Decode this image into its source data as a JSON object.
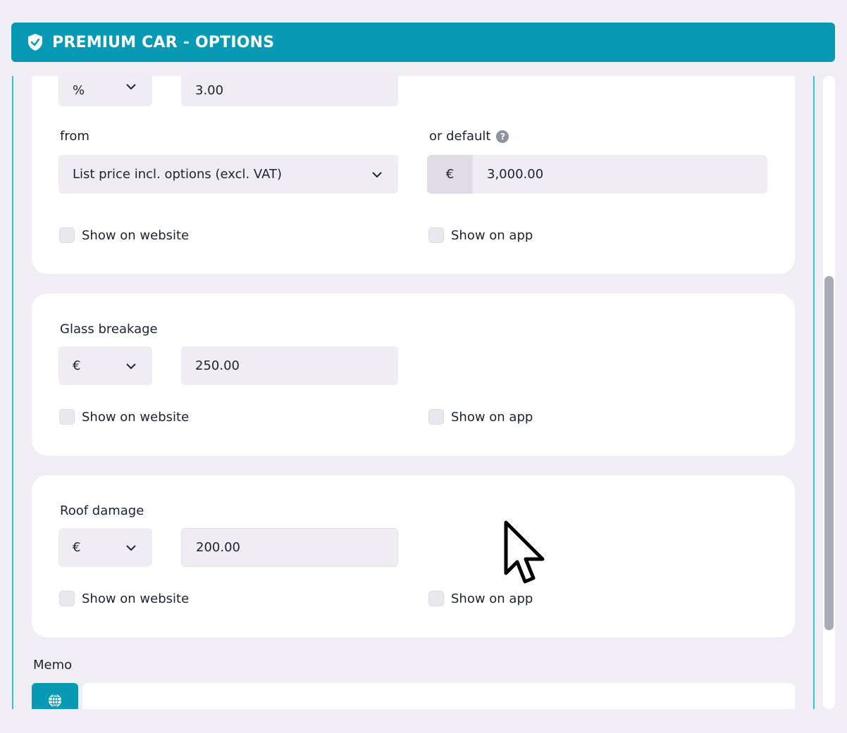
{
  "header": {
    "title": "PREMIUM CAR - OPTIONS",
    "icon": "shield-check-icon",
    "color": "#0899b5"
  },
  "card1": {
    "unit": "%",
    "value": "3.00",
    "from_label": "from",
    "from_value": "List price incl. options (excl. VAT)",
    "default_label": "or default",
    "default_prefix": "€",
    "default_value": "3,000.00",
    "show_website": "Show on website",
    "show_app": "Show on app"
  },
  "card2": {
    "title": "Glass breakage",
    "unit": "€",
    "value": "250.00",
    "show_website": "Show on website",
    "show_app": "Show on app"
  },
  "card3": {
    "title": "Roof damage",
    "unit": "€",
    "value": "200.00",
    "show_website": "Show on website",
    "show_app": "Show on app"
  },
  "memo": {
    "label": "Memo",
    "icon": "globe-icon",
    "value": ""
  }
}
